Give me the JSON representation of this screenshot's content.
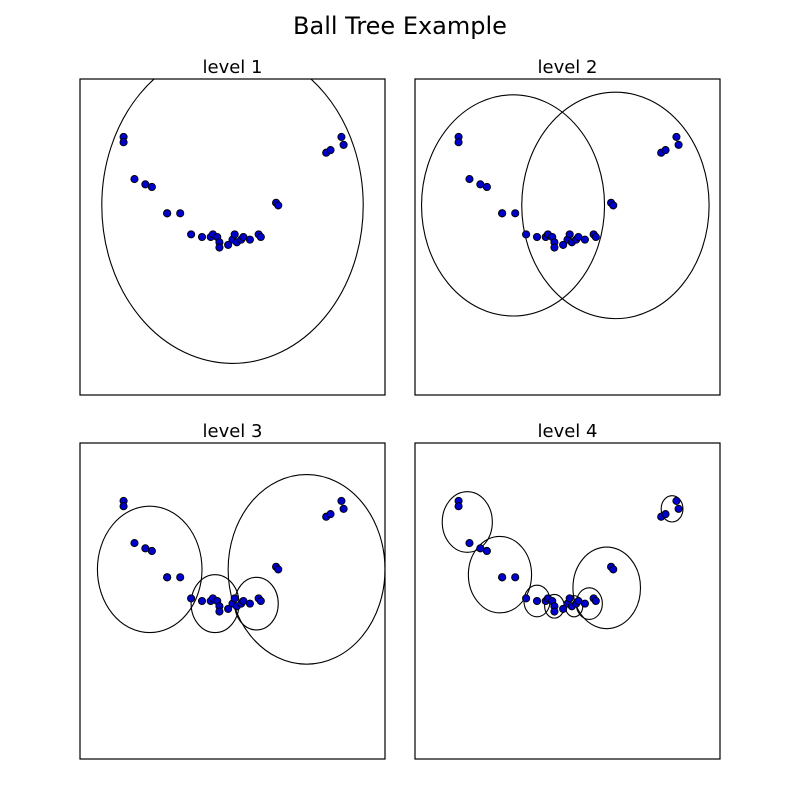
{
  "chart_data": {
    "type": "scatter",
    "title": "Ball Tree Example",
    "point_color": "#0000cc",
    "point_edge_color": "#000000",
    "xlim": [
      -0.2,
      1.2
    ],
    "ylim": [
      -0.2,
      1.0
    ],
    "points": [
      [
        0.0,
        0.78
      ],
      [
        0.0,
        0.76
      ],
      [
        0.05,
        0.62
      ],
      [
        0.1,
        0.6
      ],
      [
        0.13,
        0.59
      ],
      [
        0.2,
        0.49
      ],
      [
        0.2,
        0.49
      ],
      [
        0.26,
        0.49
      ],
      [
        0.31,
        0.41
      ],
      [
        0.36,
        0.4
      ],
      [
        0.4,
        0.4
      ],
      [
        0.41,
        0.41
      ],
      [
        0.43,
        0.4
      ],
      [
        0.44,
        0.38
      ],
      [
        0.44,
        0.36
      ],
      [
        0.48,
        0.37
      ],
      [
        0.5,
        0.39
      ],
      [
        0.51,
        0.41
      ],
      [
        0.52,
        0.38
      ],
      [
        0.54,
        0.39
      ],
      [
        0.55,
        0.4
      ],
      [
        0.58,
        0.39
      ],
      [
        0.62,
        0.41
      ],
      [
        0.63,
        0.4
      ],
      [
        0.7,
        0.53
      ],
      [
        0.71,
        0.52
      ],
      [
        0.93,
        0.72
      ],
      [
        0.95,
        0.73
      ],
      [
        1.0,
        0.78
      ],
      [
        1.01,
        0.75
      ]
    ],
    "panels": [
      {
        "title": "level 1",
        "balls": [
          {
            "cx": 0.5,
            "cy": 0.52,
            "r": 0.6
          }
        ]
      },
      {
        "title": "level 2",
        "balls": [
          {
            "cx": 0.25,
            "cy": 0.52,
            "r": 0.42
          },
          {
            "cx": 0.72,
            "cy": 0.52,
            "r": 0.43
          }
        ]
      },
      {
        "title": "level 3",
        "balls": [
          {
            "cx": 0.12,
            "cy": 0.52,
            "r": 0.24
          },
          {
            "cx": 0.42,
            "cy": 0.39,
            "r": 0.11
          },
          {
            "cx": 0.61,
            "cy": 0.39,
            "r": 0.1
          },
          {
            "cx": 0.84,
            "cy": 0.52,
            "r": 0.36
          }
        ]
      },
      {
        "title": "level 4",
        "balls": [
          {
            "cx": 0.04,
            "cy": 0.7,
            "r": 0.115
          },
          {
            "cx": 0.19,
            "cy": 0.5,
            "r": 0.145
          },
          {
            "cx": 0.36,
            "cy": 0.4,
            "r": 0.06
          },
          {
            "cx": 0.44,
            "cy": 0.38,
            "r": 0.045
          },
          {
            "cx": 0.53,
            "cy": 0.38,
            "r": 0.04
          },
          {
            "cx": 0.6,
            "cy": 0.39,
            "r": 0.06
          },
          {
            "cx": 0.68,
            "cy": 0.45,
            "r": 0.155
          },
          {
            "cx": 0.98,
            "cy": 0.75,
            "r": 0.05
          }
        ]
      }
    ]
  }
}
